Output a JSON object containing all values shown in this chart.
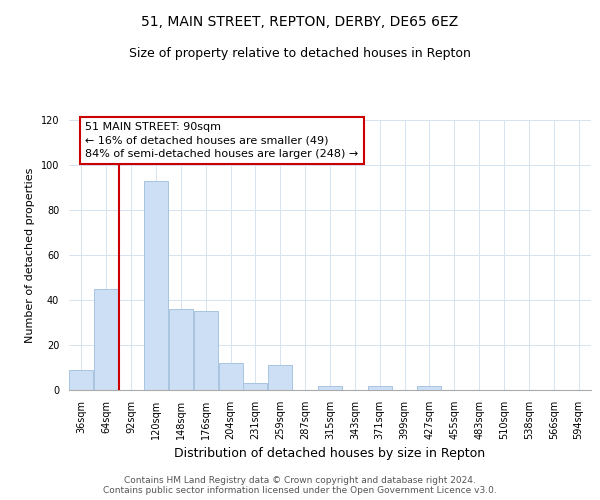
{
  "title": "51, MAIN STREET, REPTON, DERBY, DE65 6EZ",
  "subtitle": "Size of property relative to detached houses in Repton",
  "xlabel": "Distribution of detached houses by size in Repton",
  "ylabel": "Number of detached properties",
  "bar_labels": [
    "36sqm",
    "64sqm",
    "92sqm",
    "120sqm",
    "148sqm",
    "176sqm",
    "204sqm",
    "231sqm",
    "259sqm",
    "287sqm",
    "315sqm",
    "343sqm",
    "371sqm",
    "399sqm",
    "427sqm",
    "455sqm",
    "483sqm",
    "510sqm",
    "538sqm",
    "566sqm",
    "594sqm"
  ],
  "bar_values": [
    9,
    45,
    0,
    93,
    36,
    35,
    12,
    3,
    11,
    0,
    2,
    0,
    2,
    0,
    2,
    0,
    0,
    0,
    0,
    0,
    0
  ],
  "bar_color": "#ccdff5",
  "bar_edge_color": "#a8c4e0",
  "vline_color": "#cc0000",
  "ylim": [
    0,
    120
  ],
  "yticks": [
    0,
    20,
    40,
    60,
    80,
    100,
    120
  ],
  "annotation_text": "51 MAIN STREET: 90sqm\n← 16% of detached houses are smaller (49)\n84% of semi-detached houses are larger (248) →",
  "annotation_box_color": "#ffffff",
  "annotation_box_edge": "#cc0000",
  "footer_line1": "Contains HM Land Registry data © Crown copyright and database right 2024.",
  "footer_line2": "Contains public sector information licensed under the Open Government Licence v3.0.",
  "grid_color": "#d5e3f0",
  "title_fontsize": 10,
  "subtitle_fontsize": 9,
  "xlabel_fontsize": 9,
  "ylabel_fontsize": 8,
  "tick_fontsize": 7,
  "annotation_fontsize": 8,
  "footer_fontsize": 6.5
}
